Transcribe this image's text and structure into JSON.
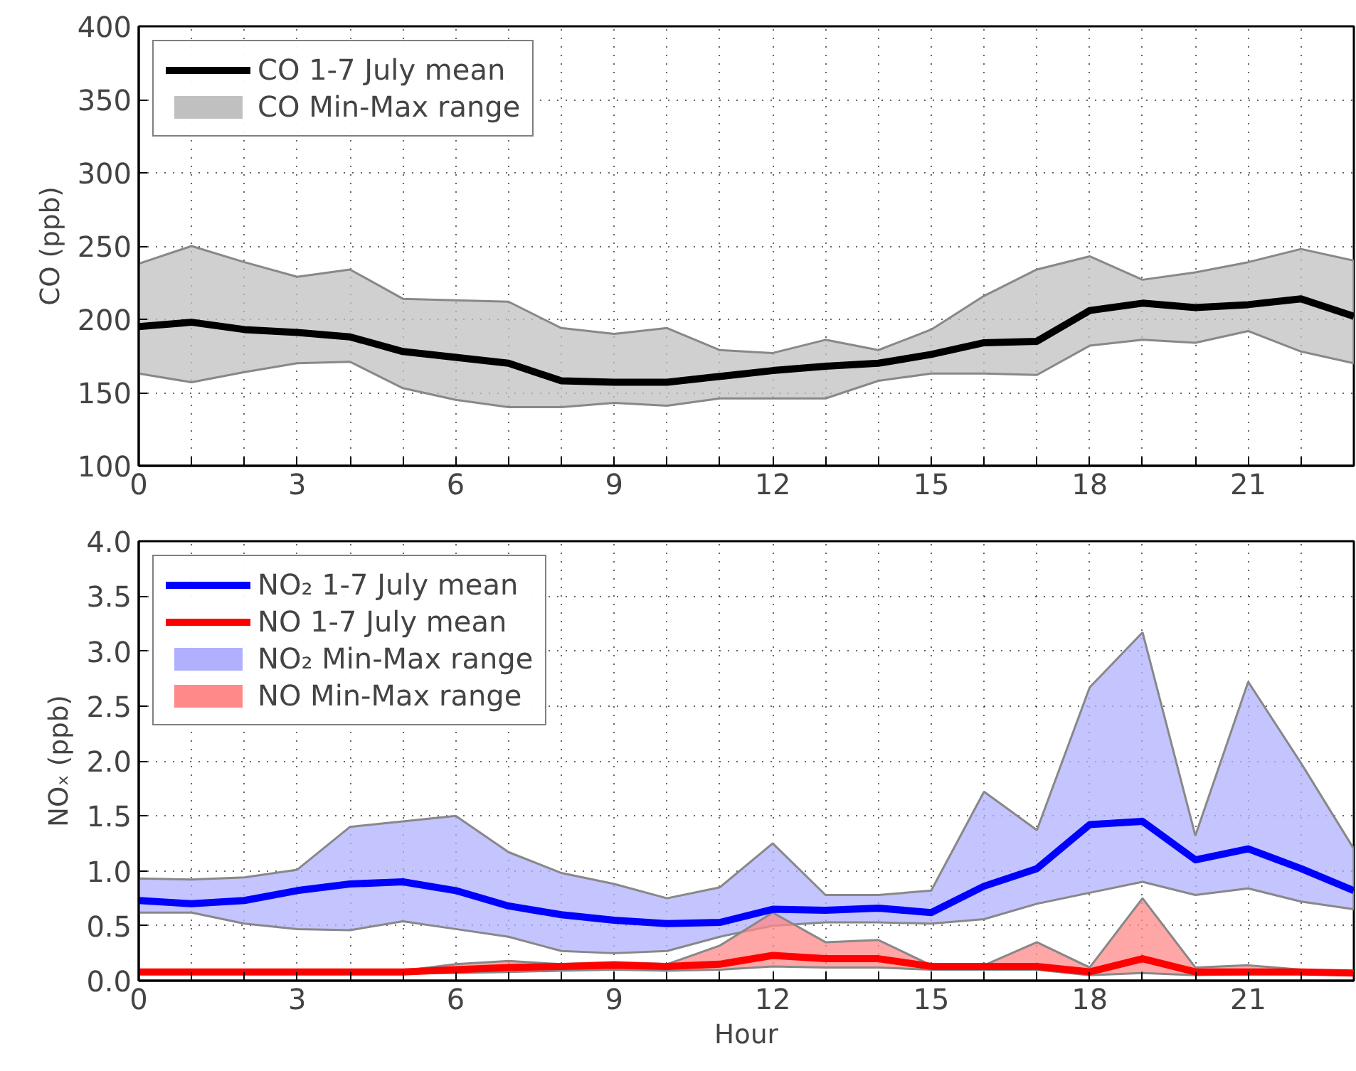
{
  "chart_data": [
    {
      "type": "line",
      "ylabel": "CO (ppb)",
      "x": [
        0,
        1,
        2,
        3,
        4,
        5,
        6,
        7,
        8,
        9,
        10,
        11,
        12,
        13,
        14,
        15,
        16,
        17,
        18,
        19,
        20,
        21,
        22,
        23
      ],
      "xlim": [
        0,
        23
      ],
      "xticks": [
        0,
        {
          "value": 1,
          "label": null
        },
        {
          "value": 2,
          "label": null
        },
        3,
        {
          "value": 4,
          "label": null
        },
        {
          "value": 5,
          "label": null
        },
        6,
        {
          "value": 7,
          "label": null
        },
        {
          "value": 8,
          "label": null
        },
        9,
        {
          "value": 10,
          "label": null
        },
        {
          "value": 11,
          "label": null
        },
        12,
        {
          "value": 13,
          "label": null
        },
        {
          "value": 14,
          "label": null
        },
        15,
        {
          "value": 16,
          "label": null
        },
        {
          "value": 17,
          "label": null
        },
        18,
        {
          "value": 19,
          "label": null
        },
        {
          "value": 20,
          "label": null
        },
        21,
        {
          "value": 22,
          "label": null
        },
        {
          "value": 23,
          "label": null
        }
      ],
      "ylim": [
        100,
        400
      ],
      "yticks": [
        100,
        150,
        200,
        250,
        300,
        350,
        400
      ],
      "grid": true,
      "legend": "top left",
      "line_style": "solid",
      "series": [
        {
          "name": "CO 1-7 July mean",
          "color": "#000000",
          "values": [
            195,
            198,
            193,
            191,
            188,
            178,
            174,
            170,
            158,
            157,
            157,
            161,
            165,
            168,
            170,
            176,
            184,
            185,
            206,
            211,
            208,
            210,
            214,
            202
          ],
          "lower": [
            163,
            157,
            164,
            170,
            171,
            153,
            145,
            140,
            140,
            143,
            141,
            146,
            146,
            146,
            158,
            163,
            163,
            162,
            182,
            186,
            184,
            192,
            178,
            170
          ],
          "upper": [
            238,
            250,
            239,
            229,
            234,
            214,
            213,
            212,
            194,
            190,
            194,
            179,
            177,
            186,
            179,
            193,
            216,
            234,
            243,
            227,
            232,
            239,
            248,
            240
          ]
        },
        {
          "name": "CO Min-Max range",
          "type": "area",
          "color": "#c0c0c0",
          "values": [
            null,
            null,
            null,
            null,
            null,
            null,
            null,
            null,
            null,
            null,
            null,
            null,
            null,
            null,
            null,
            null,
            null,
            null,
            null,
            null,
            null,
            null,
            null,
            null
          ]
        }
      ]
    },
    {
      "type": "line",
      "ylabel": "NOₓ (ppb)",
      "xlabel": "Hour",
      "x": [
        0,
        1,
        2,
        3,
        4,
        5,
        6,
        7,
        8,
        9,
        10,
        11,
        12,
        13,
        14,
        15,
        16,
        17,
        18,
        19,
        20,
        21,
        22,
        23
      ],
      "xlim": [
        0,
        23
      ],
      "xticks": [
        0,
        {
          "value": 1,
          "label": null
        },
        {
          "value": 2,
          "label": null
        },
        3,
        {
          "value": 4,
          "label": null
        },
        {
          "value": 5,
          "label": null
        },
        6,
        {
          "value": 7,
          "label": null
        },
        {
          "value": 8,
          "label": null
        },
        9,
        {
          "value": 10,
          "label": null
        },
        {
          "value": 11,
          "label": null
        },
        12,
        {
          "value": 13,
          "label": null
        },
        {
          "value": 14,
          "label": null
        },
        15,
        {
          "value": 16,
          "label": null
        },
        {
          "value": 17,
          "label": null
        },
        18,
        {
          "value": 19,
          "label": null
        },
        {
          "value": 20,
          "label": null
        },
        21,
        {
          "value": 22,
          "label": null
        },
        {
          "value": 23,
          "label": null
        }
      ],
      "ylim": [
        0,
        4
      ],
      "yticks": [
        {
          "value": 0,
          "label": "0.0"
        },
        0.5,
        {
          "value": 1,
          "label": "1.0"
        },
        1.5,
        {
          "value": 2,
          "label": "2.0"
        },
        2.5,
        {
          "value": 3,
          "label": "3.0"
        },
        3.5,
        {
          "value": 4,
          "label": "4.0"
        }
      ],
      "grid": true,
      "legend": "top left",
      "line_style": "solid",
      "series": [
        {
          "name": "NO₂ 1-7 July mean",
          "color": "#0000ff",
          "values": [
            0.73,
            0.7,
            0.73,
            0.82,
            0.88,
            0.9,
            0.82,
            0.68,
            0.6,
            0.55,
            0.52,
            0.53,
            0.65,
            0.64,
            0.66,
            0.62,
            0.86,
            1.02,
            1.42,
            1.45,
            1.1,
            1.2,
            1.02,
            0.82
          ],
          "lower": [
            0.62,
            0.62,
            0.52,
            0.47,
            0.46,
            0.54,
            0.47,
            0.4,
            0.27,
            0.25,
            0.27,
            0.4,
            0.5,
            0.53,
            0.53,
            0.52,
            0.56,
            0.7,
            0.8,
            0.9,
            0.78,
            0.84,
            0.72,
            0.65
          ],
          "upper": [
            0.93,
            0.92,
            0.94,
            1.01,
            1.4,
            1.45,
            1.5,
            1.17,
            0.98,
            0.88,
            0.75,
            0.85,
            1.25,
            0.78,
            0.78,
            0.82,
            1.72,
            1.37,
            2.67,
            3.17,
            1.32,
            2.72,
            1.98,
            1.2
          ]
        },
        {
          "name": "NO 1-7 July mean",
          "color": "#ff0000",
          "values": [
            0.08,
            0.08,
            0.08,
            0.08,
            0.08,
            0.08,
            0.1,
            0.12,
            0.13,
            0.14,
            0.13,
            0.15,
            0.23,
            0.2,
            0.2,
            0.13,
            0.13,
            0.13,
            0.08,
            0.2,
            0.08,
            0.08,
            0.08,
            0.07
          ],
          "lower": [
            0.07,
            0.07,
            0.07,
            0.07,
            0.07,
            0.07,
            0.07,
            0.08,
            0.09,
            0.1,
            0.09,
            0.1,
            0.13,
            0.12,
            0.12,
            0.1,
            0.1,
            0.1,
            0.05,
            0.07,
            0.05,
            0.06,
            0.06,
            0.05
          ],
          "upper": [
            0.08,
            0.08,
            0.08,
            0.08,
            0.08,
            0.09,
            0.15,
            0.18,
            0.15,
            0.17,
            0.15,
            0.32,
            0.62,
            0.35,
            0.37,
            0.14,
            0.14,
            0.35,
            0.12,
            0.75,
            0.12,
            0.14,
            0.1,
            0.08
          ]
        },
        {
          "name": "NO₂ Min-Max range",
          "type": "area",
          "color": "#b0b0ff",
          "values": [
            null,
            null,
            null,
            null,
            null,
            null,
            null,
            null,
            null,
            null,
            null,
            null,
            null,
            null,
            null,
            null,
            null,
            null,
            null,
            null,
            null,
            null,
            null,
            null
          ]
        },
        {
          "name": "NO Min-Max range",
          "type": "area",
          "color": "#ff8888",
          "values": [
            null,
            null,
            null,
            null,
            null,
            null,
            null,
            null,
            null,
            null,
            null,
            null,
            null,
            null,
            null,
            null,
            null,
            null,
            null,
            null,
            null,
            null,
            null,
            null
          ]
        }
      ]
    }
  ]
}
